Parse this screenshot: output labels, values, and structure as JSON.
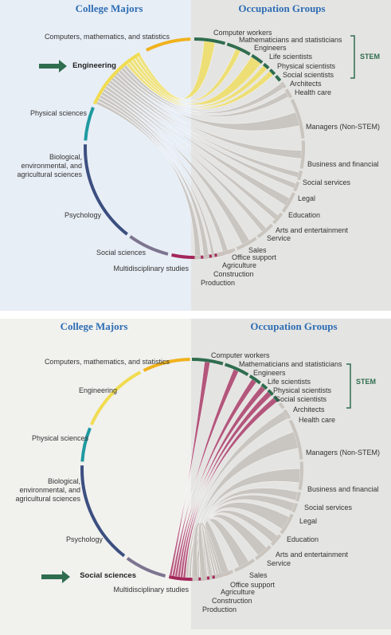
{
  "headers": {
    "majors": "College Majors",
    "occupations": "Occupation Groups"
  },
  "stem_label": "STEM",
  "colors": {
    "left_bg": "#e8eef6",
    "right_bg": "#e4e4e2",
    "ribbon": "#c4bfba",
    "stem_bracket": "#2f6d4f",
    "occupation_stem": "#2f6d4f",
    "occupation_nonstem": "#c9c4be",
    "arrow": "#2f6d4f"
  },
  "majors": [
    {
      "name": "Computers, mathematics, and statistics",
      "color": "#f0b21c"
    },
    {
      "name": "Engineering",
      "color": "#f0dc50"
    },
    {
      "name": "Physical sciences",
      "color": "#1f9aa1"
    },
    {
      "name": "Biological, environmental, and agricultural sciences",
      "color": "#3c4f80"
    },
    {
      "name": "Psychology",
      "color": "#7d7590"
    },
    {
      "name": "Social sciences",
      "color": "#a3275a"
    },
    {
      "name": "Multidisciplinary studies",
      "color": "#d0452a"
    }
  ],
  "occupations": [
    {
      "name": "Computer workers",
      "stem": true
    },
    {
      "name": "Mathematicians and statisticians",
      "stem": true
    },
    {
      "name": "Engineers",
      "stem": true
    },
    {
      "name": "Life scientists",
      "stem": true
    },
    {
      "name": "Physical scientists",
      "stem": true
    },
    {
      "name": "Social scientists",
      "stem": true
    },
    {
      "name": "Architects",
      "stem": false
    },
    {
      "name": "Health care",
      "stem": false
    },
    {
      "name": "Managers (Non-STEM)",
      "stem": false
    },
    {
      "name": "Business and financial",
      "stem": false
    },
    {
      "name": "Social services",
      "stem": false
    },
    {
      "name": "Legal",
      "stem": false
    },
    {
      "name": "Education",
      "stem": false
    },
    {
      "name": "Arts and entertainment",
      "stem": false
    },
    {
      "name": "Service",
      "stem": false
    },
    {
      "name": "Sales",
      "stem": false
    },
    {
      "name": "Office support",
      "stem": false
    },
    {
      "name": "Agriculture",
      "stem": false
    },
    {
      "name": "Construction",
      "stem": false
    },
    {
      "name": "Production",
      "stem": false
    }
  ],
  "panels": [
    {
      "highlight": "Engineering",
      "flows": [
        {
          "to": "Computer workers",
          "level": 3
        },
        {
          "to": "Mathematicians and statisticians",
          "level": 1
        },
        {
          "to": "Engineers",
          "level": 5
        },
        {
          "to": "Life scientists",
          "level": 1
        },
        {
          "to": "Physical scientists",
          "level": 1
        },
        {
          "to": "Architects",
          "level": 1
        },
        {
          "to": "Health care",
          "level": 1
        },
        {
          "to": "Managers (Non-STEM)",
          "level": 4
        },
        {
          "to": "Business and financial",
          "level": 2
        },
        {
          "to": "Social services",
          "level": 1
        },
        {
          "to": "Legal",
          "level": 1
        },
        {
          "to": "Education",
          "level": 2
        },
        {
          "to": "Arts and entertainment",
          "level": 1
        },
        {
          "to": "Service",
          "level": 1
        },
        {
          "to": "Sales",
          "level": 2
        },
        {
          "to": "Office support",
          "level": 1
        },
        {
          "to": "Agriculture",
          "level": 1
        },
        {
          "to": "Construction",
          "level": 1
        },
        {
          "to": "Production",
          "level": 2
        }
      ]
    },
    {
      "highlight": "Social sciences",
      "flows": [
        {
          "to": "Computer workers",
          "level": 1
        },
        {
          "to": "Mathematicians and statisticians",
          "level": 1
        },
        {
          "to": "Engineers",
          "level": 1
        },
        {
          "to": "Life scientists",
          "level": 1
        },
        {
          "to": "Physical scientists",
          "level": 1
        },
        {
          "to": "Social scientists",
          "level": 1
        },
        {
          "to": "Health care",
          "level": 2
        },
        {
          "to": "Managers (Non-STEM)",
          "level": 5
        },
        {
          "to": "Business and financial",
          "level": 4
        },
        {
          "to": "Social services",
          "level": 3
        },
        {
          "to": "Legal",
          "level": 3
        },
        {
          "to": "Education",
          "level": 4
        },
        {
          "to": "Arts and entertainment",
          "level": 2
        },
        {
          "to": "Service",
          "level": 3
        },
        {
          "to": "Sales",
          "level": 3
        },
        {
          "to": "Office support",
          "level": 3
        },
        {
          "to": "Agriculture",
          "level": 1
        },
        {
          "to": "Construction",
          "level": 1
        },
        {
          "to": "Production",
          "level": 1
        }
      ]
    }
  ]
}
